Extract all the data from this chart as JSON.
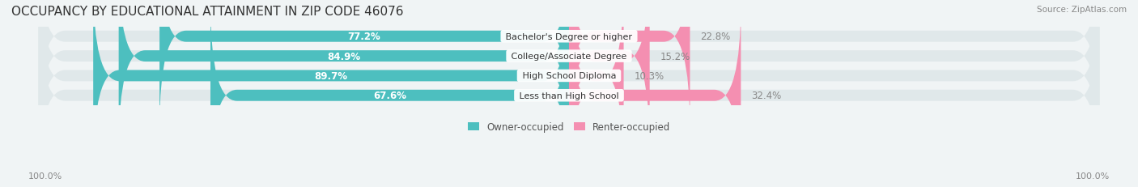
{
  "title": "OCCUPANCY BY EDUCATIONAL ATTAINMENT IN ZIP CODE 46076",
  "source": "Source: ZipAtlas.com",
  "categories": [
    "Less than High School",
    "High School Diploma",
    "College/Associate Degree",
    "Bachelor's Degree or higher"
  ],
  "owner_pct": [
    67.6,
    89.7,
    84.9,
    77.2
  ],
  "renter_pct": [
    32.4,
    10.3,
    15.2,
    22.8
  ],
  "owner_color": "#4DBFBF",
  "renter_color": "#F48FB1",
  "bg_color": "#f0f4f5",
  "bar_bg_color": "#e0e8ea",
  "title_fontsize": 11,
  "label_fontsize": 8.5,
  "bar_height": 0.55,
  "axis_label_left": "100.0%",
  "axis_label_right": "100.0%"
}
